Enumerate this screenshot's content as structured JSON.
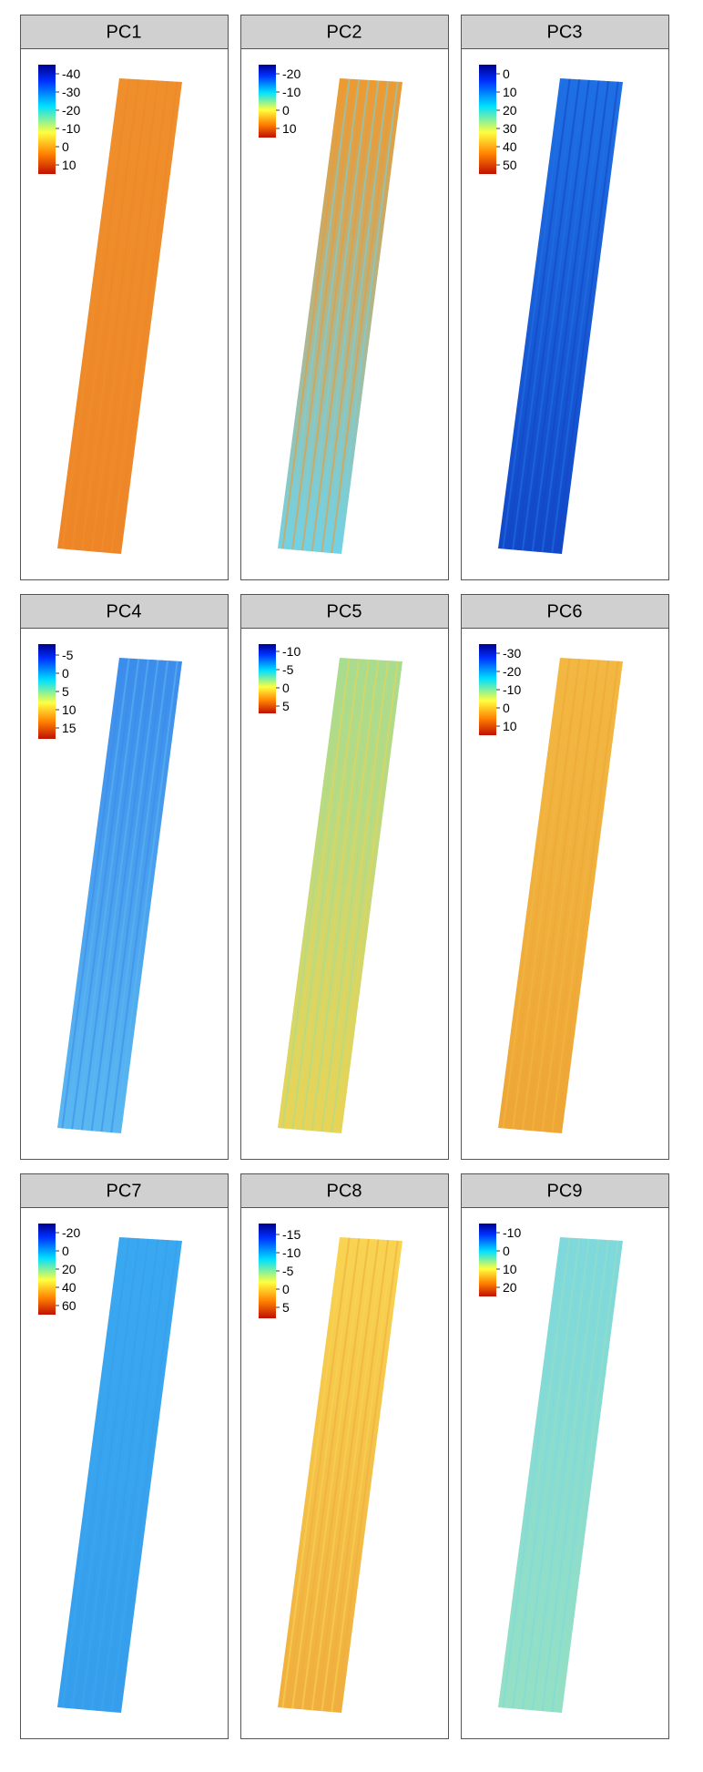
{
  "panels": [
    {
      "title": "PC1",
      "ticks": [
        -40,
        -30,
        -20,
        -10,
        0,
        10
      ],
      "lim": [
        -45,
        15
      ],
      "colors": [
        "#ef8f2c",
        "#ee8628"
      ]
    },
    {
      "title": "PC2",
      "ticks": [
        -20,
        -10,
        0,
        10
      ],
      "lim": [
        -25,
        15
      ],
      "colors": [
        "#ee9a30",
        "#72d2e6"
      ]
    },
    {
      "title": "PC3",
      "ticks": [
        0,
        10,
        20,
        30,
        40,
        50
      ],
      "lim": [
        -5,
        55
      ],
      "colors": [
        "#1f70e4",
        "#1248c8"
      ]
    },
    {
      "title": "PC4",
      "ticks": [
        -5,
        0,
        5,
        10,
        15
      ],
      "lim": [
        -8,
        18
      ],
      "colors": [
        "#3c8cec",
        "#5ab8f0"
      ]
    },
    {
      "title": "PC5",
      "ticks": [
        -10,
        -5,
        0,
        5
      ],
      "lim": [
        -12,
        7
      ],
      "colors": [
        "#a8dc90",
        "#e8d456"
      ]
    },
    {
      "title": "PC6",
      "ticks": [
        -30,
        -20,
        -10,
        0,
        10
      ],
      "lim": [
        -35,
        15
      ],
      "colors": [
        "#f2b842",
        "#eea636"
      ]
    },
    {
      "title": "PC7",
      "ticks": [
        -20,
        0,
        20,
        40,
        60
      ],
      "lim": [
        -30,
        70
      ],
      "colors": [
        "#3aa8f0",
        "#369eec"
      ]
    },
    {
      "title": "PC8",
      "ticks": [
        -15,
        -10,
        -5,
        0,
        5
      ],
      "lim": [
        -18,
        8
      ],
      "colors": [
        "#f8d452",
        "#f0ae3e"
      ]
    },
    {
      "title": "PC9",
      "ticks": [
        -10,
        0,
        10,
        20
      ],
      "lim": [
        -15,
        25
      ],
      "colors": [
        "#7ed8dc",
        "#94e0c4"
      ]
    }
  ]
}
